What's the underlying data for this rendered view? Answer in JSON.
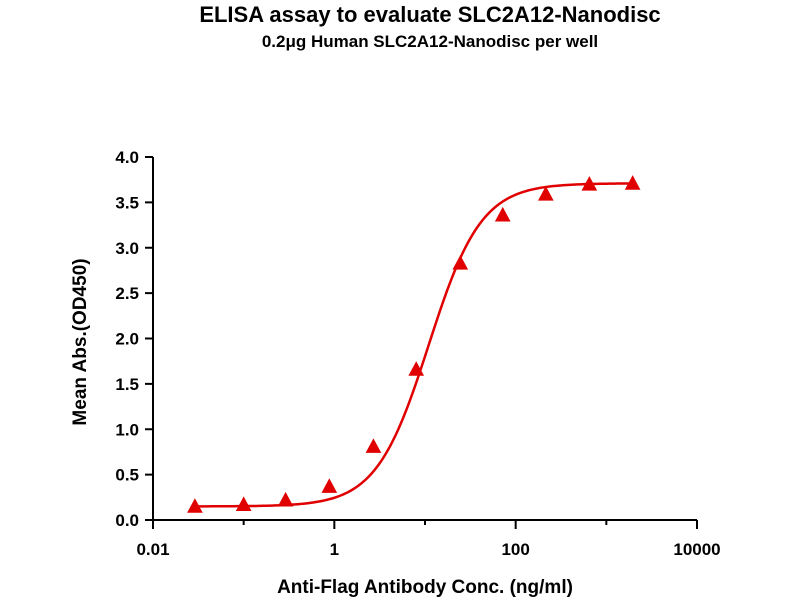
{
  "chart_data": {
    "type": "scatter",
    "title": "ELISA assay to evaluate SLC2A12-Nanodisc",
    "subtitle": "0.2μg Human SLC2A12-Nanodisc per well",
    "xlabel": "Anti-Flag Antibody Conc. (ng/ml)",
    "ylabel": "Mean Abs.(OD450)",
    "x_scale": "log",
    "xlim": [
      0.01,
      10000
    ],
    "ylim": [
      0,
      4.0
    ],
    "x_ticks": [
      0.01,
      1,
      100,
      10000
    ],
    "x_tick_labels": [
      "0.01",
      "1",
      "100",
      "10000"
    ],
    "y_ticks": [
      0,
      0.5,
      1.0,
      1.5,
      2.0,
      2.5,
      3.0,
      3.5,
      4.0
    ],
    "y_tick_labels": [
      "0.0",
      "0.5",
      "1.0",
      "1.5",
      "2.0",
      "2.5",
      "3.0",
      "3.5",
      "4.0"
    ],
    "grid": false,
    "marker": "triangle",
    "color": "#e00000",
    "series": [
      {
        "x": [
          0.029,
          0.1,
          0.29,
          0.88,
          2.7,
          8.0,
          24.5,
          72.0,
          215.0,
          650.0,
          1950.0
        ],
        "y": [
          0.14,
          0.16,
          0.21,
          0.36,
          0.8,
          1.65,
          2.82,
          3.35,
          3.58,
          3.69,
          3.7
        ]
      }
    ],
    "fit_curve": {
      "model": "4PL",
      "bottom": 0.15,
      "top": 3.71,
      "ec50": 11.0,
      "hill": 1.5
    }
  }
}
